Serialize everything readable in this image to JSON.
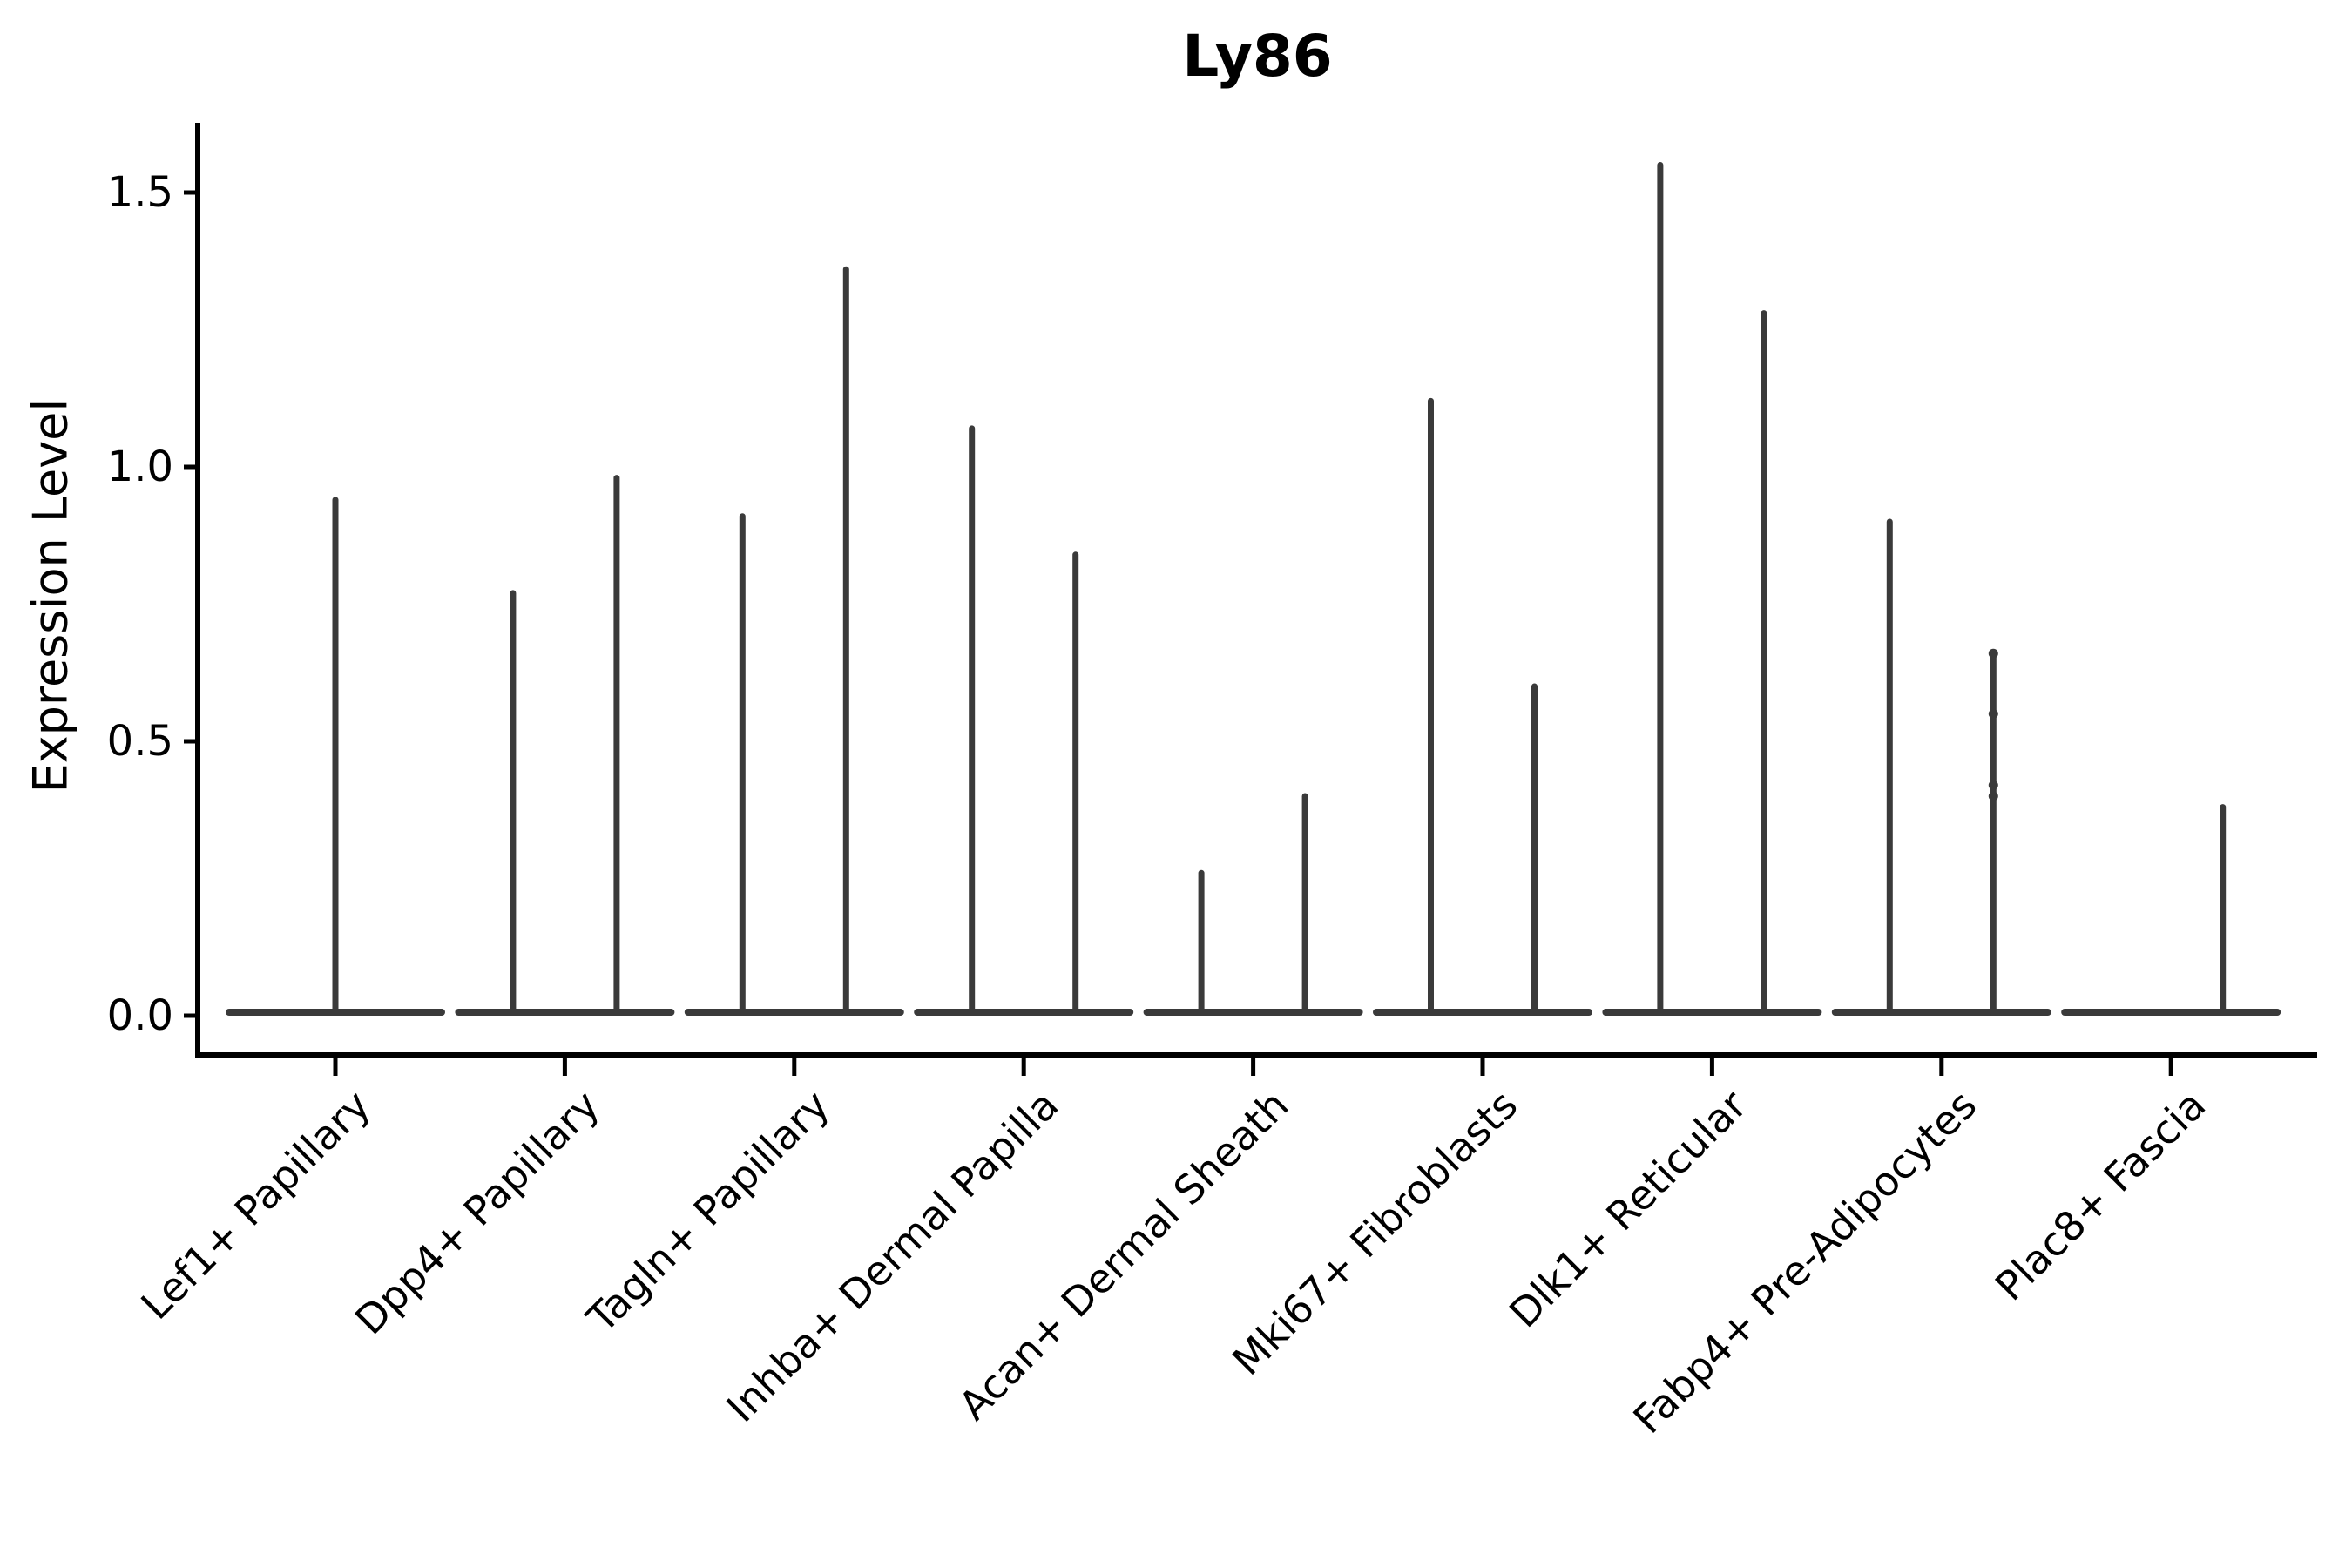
{
  "chart_data": {
    "type": "violin",
    "title": "Ly86",
    "ylabel": "Expression Level",
    "xlabel": "",
    "ylim": [
      -0.07,
      1.63
    ],
    "yticks": [
      0.0,
      0.5,
      1.0,
      1.5
    ],
    "ytick_labels": [
      "0.0",
      "0.5",
      "1.0",
      "1.5"
    ],
    "grid": false,
    "legend": "none",
    "violin_color": "#3a3a3a",
    "axis_color": "#000000",
    "categories": [
      "Lef1+ Papillary",
      "Dpp4+ Papillary",
      "Tagln+ Papillary",
      "Inhba+ Dermal Papilla",
      "Acan+ Dermal Sheath",
      "Mki67+ Fibroblasts",
      "Dlk1+ Reticular",
      "Fabp4+ Pre-Adipocytes",
      "Plac8+ Fascia"
    ],
    "violins": [
      {
        "category": "Lef1+ Papillary",
        "groups": [
          {
            "position": "center",
            "max": 0.94
          }
        ]
      },
      {
        "category": "Dpp4+ Papillary",
        "groups": [
          {
            "position": "left",
            "max": 0.77
          },
          {
            "position": "right",
            "max": 0.98
          }
        ]
      },
      {
        "category": "Tagln+ Papillary",
        "groups": [
          {
            "position": "left",
            "max": 0.91
          },
          {
            "position": "right",
            "max": 1.36
          }
        ]
      },
      {
        "category": "Inhba+ Dermal Papilla",
        "groups": [
          {
            "position": "left",
            "max": 1.07
          },
          {
            "position": "right",
            "max": 0.84
          }
        ]
      },
      {
        "category": "Acan+ Dermal Sheath",
        "groups": [
          {
            "position": "left",
            "max": 0.26
          },
          {
            "position": "right",
            "max": 0.4
          }
        ]
      },
      {
        "category": "Mki67+ Fibroblasts",
        "groups": [
          {
            "position": "left",
            "max": 1.12
          },
          {
            "position": "right",
            "max": 0.6
          }
        ]
      },
      {
        "category": "Dlk1+ Reticular",
        "groups": [
          {
            "position": "left",
            "max": 1.55
          },
          {
            "position": "right",
            "max": 1.28
          }
        ]
      },
      {
        "category": "Fabp4+ Pre-Adipocytes",
        "groups": [
          {
            "position": "left",
            "max": 0.9
          },
          {
            "position": "right",
            "max": 0.66,
            "points": [
              0.66,
              0.55,
              0.42,
              0.4
            ]
          }
        ]
      },
      {
        "category": "Plac8+ Fascia",
        "groups": [
          {
            "position": "left",
            "max": 0.0
          },
          {
            "position": "right",
            "max": 0.38
          }
        ]
      }
    ]
  }
}
